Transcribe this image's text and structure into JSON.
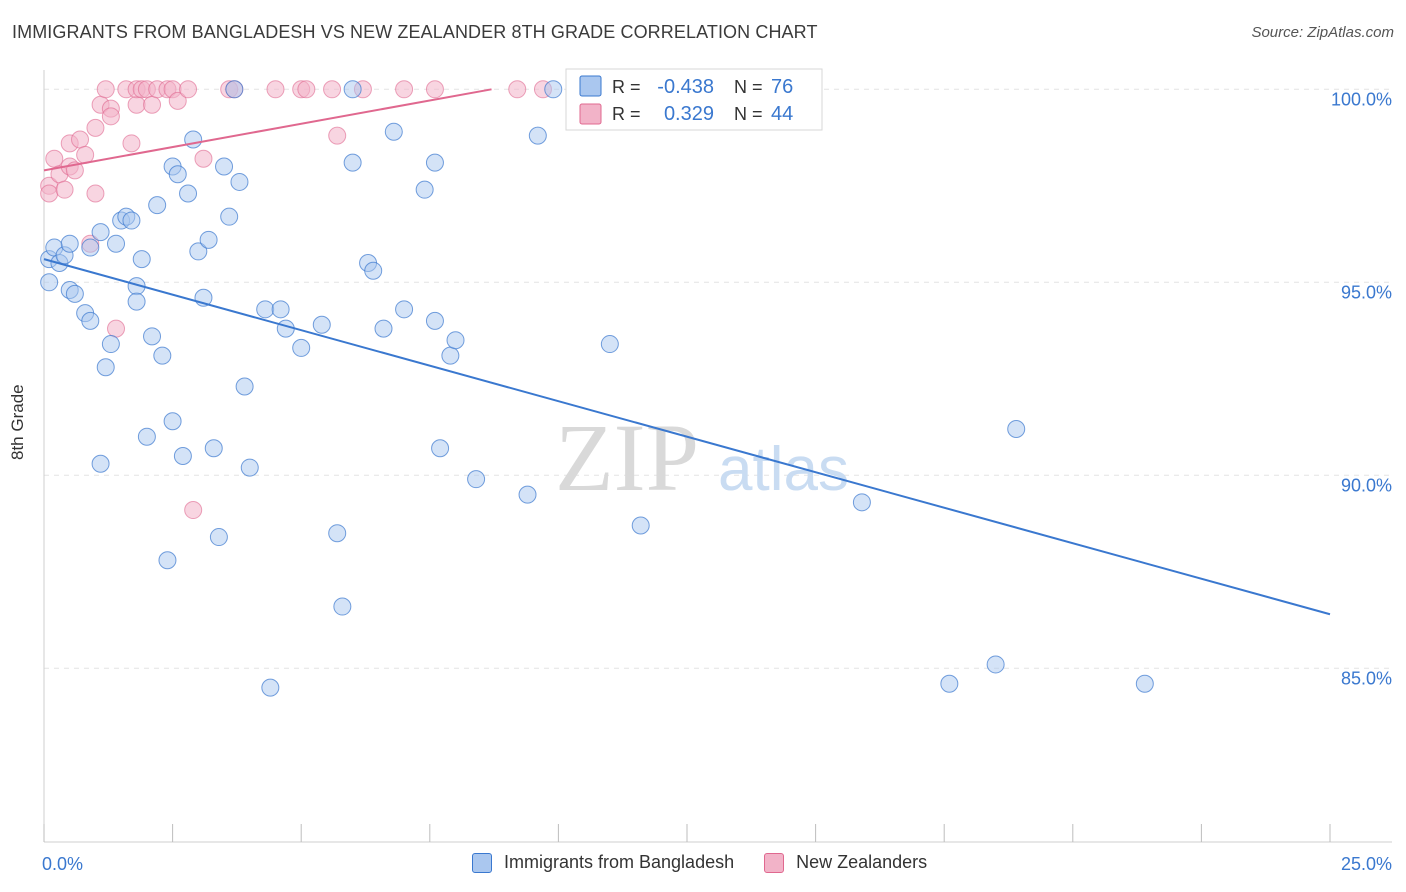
{
  "title": "IMMIGRANTS FROM BANGLADESH VS NEW ZEALANDER 8TH GRADE CORRELATION CHART",
  "source": "Source: ZipAtlas.com",
  "watermark": {
    "zip": "ZIP",
    "atlas": "atlas"
  },
  "colors": {
    "blue": "#3a78cf",
    "blue_fill": "#aac7ef",
    "pink": "#e0688f",
    "pink_fill": "#f2b3c8",
    "tick_text": "#3a78cf",
    "grid": "#e3e3e3"
  },
  "legend_box": {
    "rows": [
      {
        "r_label": "R =",
        "r_value": "-0.438",
        "n_label": "N =",
        "n_value": "76"
      },
      {
        "r_label": "R =",
        "r_value": "0.329",
        "n_label": "N =",
        "n_value": "44"
      }
    ]
  },
  "bottom_legend": [
    {
      "label": "Immigrants from Bangladesh"
    },
    {
      "label": "New Zealanders"
    }
  ],
  "chart_data": {
    "type": "scatter",
    "title": "IMMIGRANTS FROM BANGLADESH VS NEW ZEALANDER 8TH GRADE CORRELATION CHART",
    "xlabel": "",
    "ylabel": "8th Grade",
    "xlim": [
      0,
      25
    ],
    "ylim": [
      80.5,
      100.5
    ],
    "x_tick_labels": [
      "0.0%",
      "25.0%"
    ],
    "y_ticks": [
      85,
      90,
      95,
      100
    ],
    "y_tick_labels": [
      "85.0%",
      "90.0%",
      "95.0%",
      "100.0%"
    ],
    "series": [
      {
        "name": "Immigrants from Bangladesh",
        "color": "#3a78cf",
        "R": -0.438,
        "N": 76,
        "trend": {
          "x": [
            0.0,
            25.0
          ],
          "y": [
            95.6,
            86.4
          ]
        },
        "points": [
          [
            0.1,
            95.0
          ],
          [
            0.1,
            95.6
          ],
          [
            0.2,
            95.9
          ],
          [
            0.3,
            95.5
          ],
          [
            0.4,
            95.7
          ],
          [
            0.5,
            94.8
          ],
          [
            0.5,
            96.0
          ],
          [
            0.6,
            94.7
          ],
          [
            0.8,
            94.2
          ],
          [
            0.9,
            94.0
          ],
          [
            0.9,
            95.9
          ],
          [
            1.1,
            90.3
          ],
          [
            1.1,
            96.3
          ],
          [
            1.2,
            92.8
          ],
          [
            1.3,
            93.4
          ],
          [
            1.4,
            96.0
          ],
          [
            1.5,
            96.6
          ],
          [
            1.6,
            96.7
          ],
          [
            1.7,
            96.6
          ],
          [
            1.8,
            94.9
          ],
          [
            1.8,
            94.5
          ],
          [
            1.9,
            95.6
          ],
          [
            2.0,
            91.0
          ],
          [
            2.1,
            93.6
          ],
          [
            2.2,
            97.0
          ],
          [
            2.3,
            93.1
          ],
          [
            2.4,
            87.8
          ],
          [
            2.5,
            98.0
          ],
          [
            2.5,
            91.4
          ],
          [
            2.6,
            97.8
          ],
          [
            2.7,
            90.5
          ],
          [
            2.8,
            97.3
          ],
          [
            2.9,
            98.7
          ],
          [
            3.0,
            95.8
          ],
          [
            3.1,
            94.6
          ],
          [
            3.2,
            96.1
          ],
          [
            3.3,
            90.7
          ],
          [
            3.4,
            88.4
          ],
          [
            3.5,
            98.0
          ],
          [
            3.6,
            96.7
          ],
          [
            3.7,
            100.0
          ],
          [
            3.8,
            97.6
          ],
          [
            3.9,
            92.3
          ],
          [
            4.0,
            90.2
          ],
          [
            4.3,
            94.3
          ],
          [
            4.4,
            84.5
          ],
          [
            4.6,
            94.3
          ],
          [
            4.7,
            93.8
          ],
          [
            5.0,
            93.3
          ],
          [
            5.4,
            93.9
          ],
          [
            5.7,
            88.5
          ],
          [
            5.8,
            86.6
          ],
          [
            6.0,
            98.1
          ],
          [
            6.0,
            100.0
          ],
          [
            6.3,
            95.5
          ],
          [
            6.4,
            95.3
          ],
          [
            6.6,
            93.8
          ],
          [
            6.8,
            98.9
          ],
          [
            7.0,
            94.3
          ],
          [
            7.4,
            97.4
          ],
          [
            7.6,
            94.0
          ],
          [
            7.6,
            98.1
          ],
          [
            7.7,
            90.7
          ],
          [
            7.9,
            93.1
          ],
          [
            8.0,
            93.5
          ],
          [
            8.4,
            89.9
          ],
          [
            9.4,
            89.5
          ],
          [
            9.6,
            98.8
          ],
          [
            9.9,
            100.0
          ],
          [
            11.0,
            93.4
          ],
          [
            11.6,
            88.7
          ],
          [
            15.9,
            89.3
          ],
          [
            17.6,
            84.6
          ],
          [
            18.5,
            85.1
          ],
          [
            18.9,
            91.2
          ],
          [
            21.4,
            84.6
          ]
        ]
      },
      {
        "name": "New Zealanders",
        "color": "#e0688f",
        "R": 0.329,
        "N": 44,
        "trend": {
          "x": [
            0.0,
            8.7
          ],
          "y": [
            97.9,
            100.0
          ]
        },
        "points": [
          [
            0.1,
            97.5
          ],
          [
            0.1,
            97.3
          ],
          [
            0.2,
            98.2
          ],
          [
            0.3,
            97.8
          ],
          [
            0.4,
            97.4
          ],
          [
            0.5,
            98.0
          ],
          [
            0.5,
            98.6
          ],
          [
            0.6,
            97.9
          ],
          [
            0.7,
            98.7
          ],
          [
            0.8,
            98.3
          ],
          [
            0.9,
            96.0
          ],
          [
            1.0,
            97.3
          ],
          [
            1.0,
            99.0
          ],
          [
            1.1,
            99.6
          ],
          [
            1.2,
            100.0
          ],
          [
            1.3,
            99.5
          ],
          [
            1.3,
            99.3
          ],
          [
            1.4,
            93.8
          ],
          [
            1.6,
            100.0
          ],
          [
            1.7,
            98.6
          ],
          [
            1.8,
            99.6
          ],
          [
            1.8,
            100.0
          ],
          [
            1.9,
            100.0
          ],
          [
            2.0,
            100.0
          ],
          [
            2.1,
            99.6
          ],
          [
            2.2,
            100.0
          ],
          [
            2.4,
            100.0
          ],
          [
            2.5,
            100.0
          ],
          [
            2.6,
            99.7
          ],
          [
            2.8,
            100.0
          ],
          [
            2.9,
            89.1
          ],
          [
            3.1,
            98.2
          ],
          [
            3.6,
            100.0
          ],
          [
            3.7,
            100.0
          ],
          [
            4.5,
            100.0
          ],
          [
            5.0,
            100.0
          ],
          [
            5.1,
            100.0
          ],
          [
            5.6,
            100.0
          ],
          [
            5.7,
            98.8
          ],
          [
            6.2,
            100.0
          ],
          [
            7.0,
            100.0
          ],
          [
            7.6,
            100.0
          ],
          [
            9.2,
            100.0
          ],
          [
            9.7,
            100.0
          ]
        ]
      }
    ]
  }
}
